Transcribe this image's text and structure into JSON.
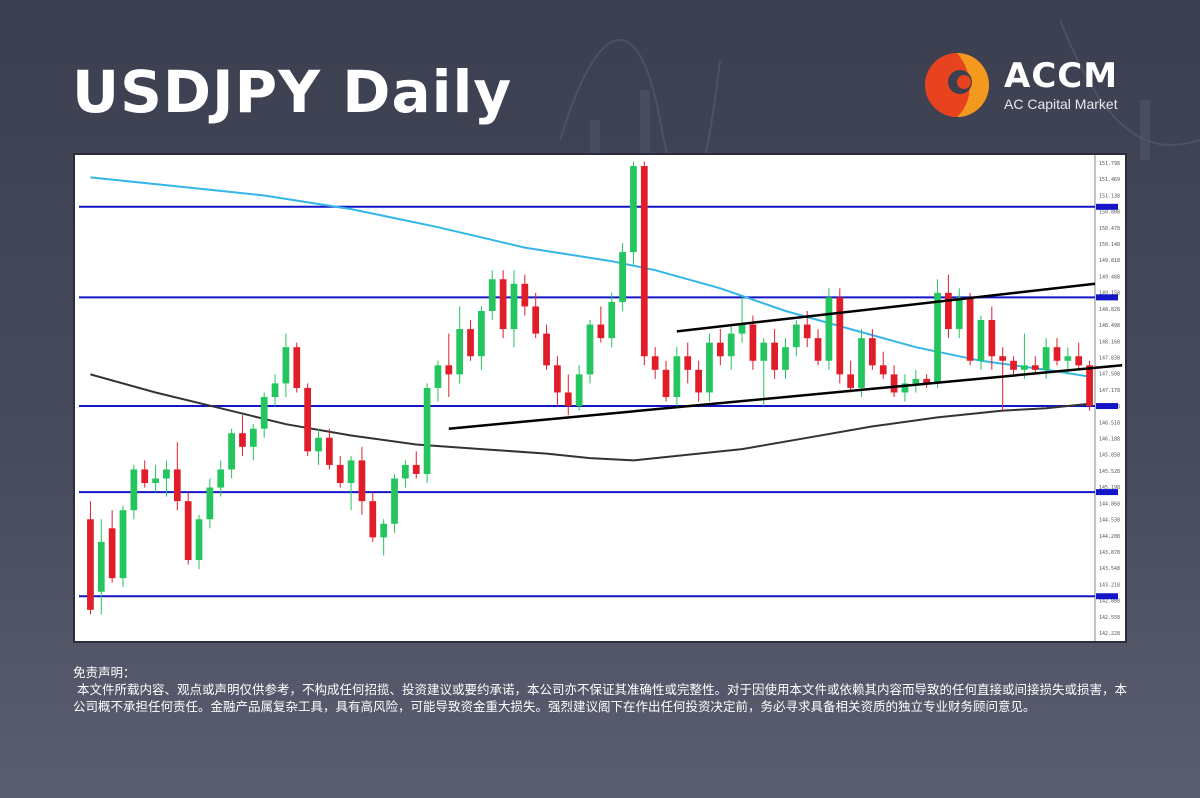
{
  "header": {
    "title": "USDJPY Daily"
  },
  "brand": {
    "name": "ACCM",
    "subtitle": "AC Capital Market",
    "colors": {
      "primary": "#e8431f",
      "secondary": "#f39a1e"
    }
  },
  "disclaimer": {
    "heading": "免责声明：",
    "body": " 本文件所载内容、观点或声明仅供参考，不构成任何招揽、投资建议或要约承诺，本公司亦不保证其准确性或完整性。对于因使用本文件或依赖其内容而导致的任何直接或间接损失或损害，本公司概不承担任何责任。金融产品属复杂工具，具有高风险，可能导致资金重大损失。强烈建议阁下在作出任何投资决定前，务必寻求具备相关资质的独立专业财务顾问意见。"
  },
  "chart_data": {
    "type": "candlestick",
    "instrument": "USDJPY",
    "timeframe": "Daily",
    "ylim": [
      141.4,
      152.0
    ],
    "grid": false,
    "colors": {
      "bull": "#22c55e",
      "bear": "#e11d2a",
      "ma_fast": "#34b6e8",
      "ma_slow": "#333333",
      "levels": "#1515c8",
      "trendlines": "#000000"
    },
    "horizontal_levels": [
      150.9,
      148.9,
      146.5,
      144.6,
      142.3
    ],
    "candles": [
      {
        "o": 144.0,
        "h": 144.4,
        "l": 141.9,
        "c": 142.0
      },
      {
        "o": 142.4,
        "h": 144.0,
        "l": 141.9,
        "c": 143.5
      },
      {
        "o": 143.8,
        "h": 144.2,
        "l": 142.6,
        "c": 142.7
      },
      {
        "o": 142.7,
        "h": 144.3,
        "l": 142.5,
        "c": 144.2
      },
      {
        "o": 144.2,
        "h": 145.2,
        "l": 144.0,
        "c": 145.1
      },
      {
        "o": 145.1,
        "h": 145.3,
        "l": 144.7,
        "c": 144.8
      },
      {
        "o": 144.8,
        "h": 145.2,
        "l": 144.6,
        "c": 144.9
      },
      {
        "o": 144.9,
        "h": 145.3,
        "l": 144.5,
        "c": 145.1
      },
      {
        "o": 145.1,
        "h": 145.7,
        "l": 144.2,
        "c": 144.4
      },
      {
        "o": 144.4,
        "h": 144.6,
        "l": 143.0,
        "c": 143.1
      },
      {
        "o": 143.1,
        "h": 144.1,
        "l": 142.9,
        "c": 144.0
      },
      {
        "o": 144.0,
        "h": 144.9,
        "l": 143.8,
        "c": 144.7
      },
      {
        "o": 144.7,
        "h": 145.3,
        "l": 144.5,
        "c": 145.1
      },
      {
        "o": 145.1,
        "h": 146.0,
        "l": 144.9,
        "c": 145.9
      },
      {
        "o": 145.9,
        "h": 146.3,
        "l": 145.4,
        "c": 145.6
      },
      {
        "o": 145.6,
        "h": 146.1,
        "l": 145.3,
        "c": 146.0
      },
      {
        "o": 146.0,
        "h": 146.8,
        "l": 145.8,
        "c": 146.7
      },
      {
        "o": 146.7,
        "h": 147.2,
        "l": 146.5,
        "c": 147.0
      },
      {
        "o": 147.0,
        "h": 148.1,
        "l": 146.7,
        "c": 147.8
      },
      {
        "o": 147.8,
        "h": 147.9,
        "l": 146.8,
        "c": 146.9
      },
      {
        "o": 146.9,
        "h": 147.0,
        "l": 145.4,
        "c": 145.5
      },
      {
        "o": 145.5,
        "h": 146.0,
        "l": 145.2,
        "c": 145.8
      },
      {
        "o": 145.8,
        "h": 146.0,
        "l": 145.1,
        "c": 145.2
      },
      {
        "o": 145.2,
        "h": 145.4,
        "l": 144.7,
        "c": 144.8
      },
      {
        "o": 144.8,
        "h": 145.4,
        "l": 144.2,
        "c": 145.3
      },
      {
        "o": 145.3,
        "h": 145.6,
        "l": 144.1,
        "c": 144.4
      },
      {
        "o": 144.4,
        "h": 144.6,
        "l": 143.5,
        "c": 143.6
      },
      {
        "o": 143.6,
        "h": 144.0,
        "l": 143.2,
        "c": 143.9
      },
      {
        "o": 143.9,
        "h": 145.0,
        "l": 143.7,
        "c": 144.9
      },
      {
        "o": 144.9,
        "h": 145.3,
        "l": 144.7,
        "c": 145.2
      },
      {
        "o": 145.2,
        "h": 145.5,
        "l": 144.9,
        "c": 145.0
      },
      {
        "o": 145.0,
        "h": 147.0,
        "l": 144.8,
        "c": 146.9
      },
      {
        "o": 146.9,
        "h": 147.5,
        "l": 146.6,
        "c": 147.4
      },
      {
        "o": 147.4,
        "h": 148.1,
        "l": 146.7,
        "c": 147.2
      },
      {
        "o": 147.2,
        "h": 148.7,
        "l": 147.0,
        "c": 148.2
      },
      {
        "o": 148.2,
        "h": 148.4,
        "l": 147.5,
        "c": 147.6
      },
      {
        "o": 147.6,
        "h": 148.7,
        "l": 147.3,
        "c": 148.6
      },
      {
        "o": 148.6,
        "h": 149.5,
        "l": 148.4,
        "c": 149.3
      },
      {
        "o": 149.3,
        "h": 149.5,
        "l": 148.0,
        "c": 148.2
      },
      {
        "o": 148.2,
        "h": 149.5,
        "l": 147.8,
        "c": 149.2
      },
      {
        "o": 149.2,
        "h": 149.4,
        "l": 148.5,
        "c": 148.7
      },
      {
        "o": 148.7,
        "h": 149.0,
        "l": 148.0,
        "c": 148.1
      },
      {
        "o": 148.1,
        "h": 148.3,
        "l": 147.3,
        "c": 147.4
      },
      {
        "o": 147.4,
        "h": 147.6,
        "l": 146.5,
        "c": 146.8
      },
      {
        "o": 146.8,
        "h": 147.2,
        "l": 146.3,
        "c": 146.5
      },
      {
        "o": 146.5,
        "h": 147.4,
        "l": 146.4,
        "c": 147.2
      },
      {
        "o": 147.2,
        "h": 148.4,
        "l": 147.0,
        "c": 148.3
      },
      {
        "o": 148.3,
        "h": 148.7,
        "l": 147.9,
        "c": 148.0
      },
      {
        "o": 148.0,
        "h": 149.0,
        "l": 147.8,
        "c": 148.8
      },
      {
        "o": 148.8,
        "h": 150.1,
        "l": 148.6,
        "c": 149.9
      },
      {
        "o": 149.9,
        "h": 151.9,
        "l": 149.6,
        "c": 151.8
      },
      {
        "o": 151.8,
        "h": 151.9,
        "l": 147.4,
        "c": 147.6
      },
      {
        "o": 147.6,
        "h": 147.8,
        "l": 147.1,
        "c": 147.3
      },
      {
        "o": 147.3,
        "h": 147.5,
        "l": 146.6,
        "c": 146.7
      },
      {
        "o": 146.7,
        "h": 147.8,
        "l": 146.5,
        "c": 147.6
      },
      {
        "o": 147.6,
        "h": 147.9,
        "l": 147.0,
        "c": 147.3
      },
      {
        "o": 147.3,
        "h": 147.5,
        "l": 146.6,
        "c": 146.8
      },
      {
        "o": 146.8,
        "h": 148.1,
        "l": 146.6,
        "c": 147.9
      },
      {
        "o": 147.9,
        "h": 148.2,
        "l": 147.4,
        "c": 147.6
      },
      {
        "o": 147.6,
        "h": 148.3,
        "l": 147.3,
        "c": 148.1
      },
      {
        "o": 148.1,
        "h": 148.9,
        "l": 147.9,
        "c": 148.3
      },
      {
        "o": 148.3,
        "h": 148.5,
        "l": 147.3,
        "c": 147.5
      },
      {
        "o": 147.5,
        "h": 148.0,
        "l": 146.5,
        "c": 147.9
      },
      {
        "o": 147.9,
        "h": 148.2,
        "l": 147.1,
        "c": 147.3
      },
      {
        "o": 147.3,
        "h": 148.0,
        "l": 147.1,
        "c": 147.8
      },
      {
        "o": 147.8,
        "h": 148.4,
        "l": 147.6,
        "c": 148.3
      },
      {
        "o": 148.3,
        "h": 148.6,
        "l": 147.8,
        "c": 148.0
      },
      {
        "o": 148.0,
        "h": 148.2,
        "l": 147.4,
        "c": 147.5
      },
      {
        "o": 147.5,
        "h": 149.1,
        "l": 147.3,
        "c": 148.9
      },
      {
        "o": 148.9,
        "h": 149.1,
        "l": 147.0,
        "c": 147.2
      },
      {
        "o": 147.2,
        "h": 147.5,
        "l": 146.8,
        "c": 146.9
      },
      {
        "o": 146.9,
        "h": 148.2,
        "l": 146.7,
        "c": 148.0
      },
      {
        "o": 148.0,
        "h": 148.2,
        "l": 147.3,
        "c": 147.4
      },
      {
        "o": 147.4,
        "h": 147.7,
        "l": 147.1,
        "c": 147.2
      },
      {
        "o": 147.2,
        "h": 147.4,
        "l": 146.7,
        "c": 146.8
      },
      {
        "o": 146.8,
        "h": 147.2,
        "l": 146.6,
        "c": 147.0
      },
      {
        "o": 147.0,
        "h": 147.3,
        "l": 146.8,
        "c": 147.1
      },
      {
        "o": 147.1,
        "h": 147.2,
        "l": 146.9,
        "c": 147.0
      },
      {
        "o": 147.0,
        "h": 149.3,
        "l": 146.9,
        "c": 149.0
      },
      {
        "o": 149.0,
        "h": 149.4,
        "l": 148.0,
        "c": 148.2
      },
      {
        "o": 148.2,
        "h": 149.1,
        "l": 148.0,
        "c": 148.9
      },
      {
        "o": 148.9,
        "h": 149.0,
        "l": 147.4,
        "c": 147.5
      },
      {
        "o": 147.5,
        "h": 148.5,
        "l": 147.3,
        "c": 148.4
      },
      {
        "o": 148.4,
        "h": 148.7,
        "l": 147.3,
        "c": 147.6
      },
      {
        "o": 147.6,
        "h": 147.8,
        "l": 146.4,
        "c": 147.5
      },
      {
        "o": 147.5,
        "h": 147.6,
        "l": 147.2,
        "c": 147.3
      },
      {
        "o": 147.3,
        "h": 148.1,
        "l": 147.1,
        "c": 147.4
      },
      {
        "o": 147.4,
        "h": 147.6,
        "l": 147.2,
        "c": 147.3
      },
      {
        "o": 147.3,
        "h": 148.0,
        "l": 147.1,
        "c": 147.8
      },
      {
        "o": 147.8,
        "h": 148.0,
        "l": 147.4,
        "c": 147.5
      },
      {
        "o": 147.5,
        "h": 147.8,
        "l": 147.2,
        "c": 147.6
      },
      {
        "o": 147.6,
        "h": 147.9,
        "l": 147.3,
        "c": 147.4
      },
      {
        "o": 147.4,
        "h": 147.5,
        "l": 146.4,
        "c": 146.5
      }
    ],
    "ma_fast": [
      [
        0,
        151.55
      ],
      [
        8,
        151.35
      ],
      [
        16,
        151.15
      ],
      [
        24,
        150.85
      ],
      [
        32,
        150.45
      ],
      [
        40,
        150.0
      ],
      [
        48,
        149.7
      ],
      [
        52,
        149.5
      ],
      [
        58,
        149.1
      ],
      [
        64,
        148.6
      ],
      [
        70,
        148.2
      ],
      [
        76,
        147.8
      ],
      [
        82,
        147.5
      ],
      [
        88,
        147.3
      ],
      [
        92,
        147.15
      ]
    ],
    "ma_slow": [
      [
        0,
        147.2
      ],
      [
        6,
        146.8
      ],
      [
        12,
        146.45
      ],
      [
        18,
        146.1
      ],
      [
        24,
        145.85
      ],
      [
        30,
        145.65
      ],
      [
        36,
        145.55
      ],
      [
        42,
        145.45
      ],
      [
        46,
        145.35
      ],
      [
        50,
        145.3
      ],
      [
        54,
        145.4
      ],
      [
        60,
        145.55
      ],
      [
        66,
        145.8
      ],
      [
        72,
        146.05
      ],
      [
        78,
        146.25
      ],
      [
        84,
        146.4
      ],
      [
        88,
        146.45
      ],
      [
        92,
        146.55
      ]
    ],
    "trendlines": [
      {
        "x1": 33,
        "y1": 146.0,
        "x2": 95,
        "y2": 147.4
      },
      {
        "x1": 54,
        "y1": 148.15,
        "x2": 92.5,
        "y2": 149.2
      }
    ],
    "price_axis_labels": [
      "151.798",
      "151.469",
      "151.138",
      "150.808",
      "150.478",
      "150.148",
      "149.818",
      "149.488",
      "149.158",
      "148.828",
      "148.498",
      "148.168",
      "147.838",
      "147.508",
      "147.178",
      "146.848",
      "146.518",
      "146.188",
      "145.858",
      "145.528",
      "145.198",
      "144.868",
      "144.538",
      "144.208",
      "143.878",
      "143.548",
      "143.218",
      "142.888",
      "142.558",
      "142.228"
    ]
  }
}
